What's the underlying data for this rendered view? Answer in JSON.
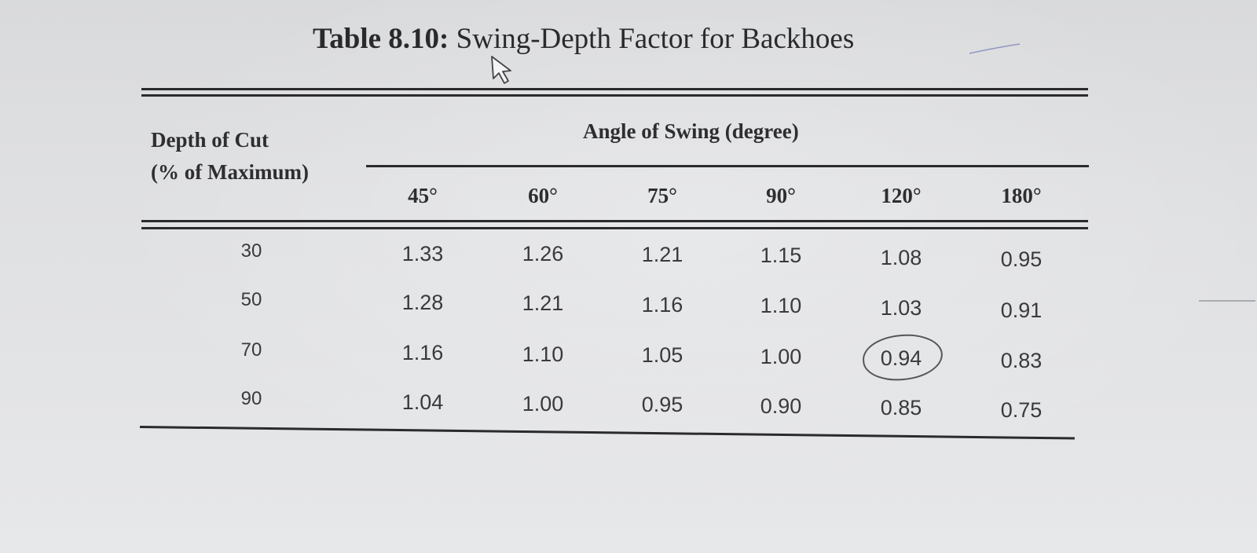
{
  "table": {
    "title_prefix": "Table 8.10:",
    "title_text": "Swing-Depth Factor for Backhoes",
    "row_header_line1": "Depth of Cut",
    "row_header_line2": "(% of Maximum)",
    "column_group_header": "Angle of Swing (degree)",
    "columns": [
      "45°",
      "60°",
      "75°",
      "90°",
      "120°",
      "180°"
    ],
    "rows": [
      {
        "depth": "30",
        "values": [
          "1.33",
          "1.26",
          "1.21",
          "1.15",
          "1.08",
          "0.95"
        ]
      },
      {
        "depth": "50",
        "values": [
          "1.28",
          "1.21",
          "1.16",
          "1.10",
          "1.03",
          "0.91"
        ]
      },
      {
        "depth": "70",
        "values": [
          "1.16",
          "1.10",
          "1.05",
          "1.00",
          "0.94",
          "0.83"
        ]
      },
      {
        "depth": "90",
        "values": [
          "1.04",
          "1.00",
          "0.95",
          "0.90",
          "0.85",
          "0.75"
        ]
      }
    ]
  },
  "cursor": {
    "icon": "mouse-pointer-icon"
  },
  "annotations": {
    "circled_value": "0.94",
    "circle_icon": "hand-drawn-circle-icon"
  }
}
